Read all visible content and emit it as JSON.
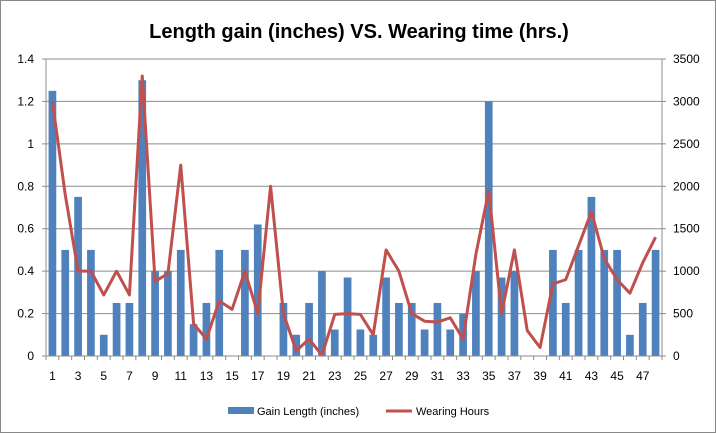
{
  "chart_data": {
    "type": "bar+line",
    "title": "Length gain (inches) VS. Wearing time (hrs.)",
    "categories": [
      1,
      2,
      3,
      4,
      5,
      6,
      7,
      8,
      9,
      10,
      11,
      12,
      13,
      14,
      15,
      16,
      17,
      18,
      19,
      20,
      21,
      22,
      23,
      24,
      25,
      26,
      27,
      28,
      29,
      30,
      31,
      32,
      33,
      34,
      35,
      36,
      37,
      38,
      39,
      40,
      41,
      42,
      43,
      44,
      45,
      46,
      47,
      48
    ],
    "x_tick_labels": [
      "1",
      "3",
      "5",
      "7",
      "9",
      "11",
      "13",
      "15",
      "17",
      "19",
      "21",
      "23",
      "25",
      "27",
      "29",
      "31",
      "33",
      "35",
      "37",
      "39",
      "41",
      "43",
      "45",
      "47"
    ],
    "y_left": {
      "range": [
        0,
        1.4
      ],
      "ticks": [
        "0",
        "0.2",
        "0.4",
        "0.6",
        "0.8",
        "1",
        "1.2",
        "1.4"
      ]
    },
    "y_right": {
      "range": [
        0,
        3500
      ],
      "ticks": [
        "0",
        "500",
        "1000",
        "1500",
        "2000",
        "2500",
        "3000",
        "3500"
      ]
    },
    "grid": true,
    "legend_position": "bottom",
    "series": [
      {
        "name": "Gain Length (inches)",
        "type": "bar",
        "axis": "left",
        "color": "#4f81bd",
        "values": [
          1.25,
          0.5,
          0.75,
          0.5,
          0.1,
          0.25,
          0.25,
          1.3,
          0.4,
          0.4,
          0.5,
          0.15,
          0.25,
          0.5,
          0,
          0.5,
          0.62,
          0,
          0.25,
          0.1,
          0.25,
          0.4,
          0.125,
          0.37,
          0.125,
          0.1,
          0.37,
          0.25,
          0.25,
          0.125,
          0.25,
          0.125,
          0.2,
          0.4,
          1.2,
          0.37,
          0.4,
          0,
          0,
          0.5,
          0.25,
          0.5,
          0.75,
          0.5,
          0.5,
          0.1,
          0.25,
          0.5
        ]
      },
      {
        "name": "Wearing Hours",
        "type": "line",
        "axis": "right",
        "color": "#c0504d",
        "values": [
          3000,
          1900,
          1000,
          1000,
          720,
          1000,
          720,
          3300,
          880,
          970,
          2250,
          380,
          200,
          650,
          550,
          1000,
          500,
          2000,
          500,
          60,
          200,
          10,
          490,
          500,
          490,
          250,
          1250,
          1000,
          500,
          410,
          400,
          450,
          200,
          1200,
          1950,
          500,
          1250,
          300,
          100,
          850,
          900,
          1300,
          1700,
          1150,
          900,
          740,
          1100,
          1400
        ]
      }
    ]
  }
}
